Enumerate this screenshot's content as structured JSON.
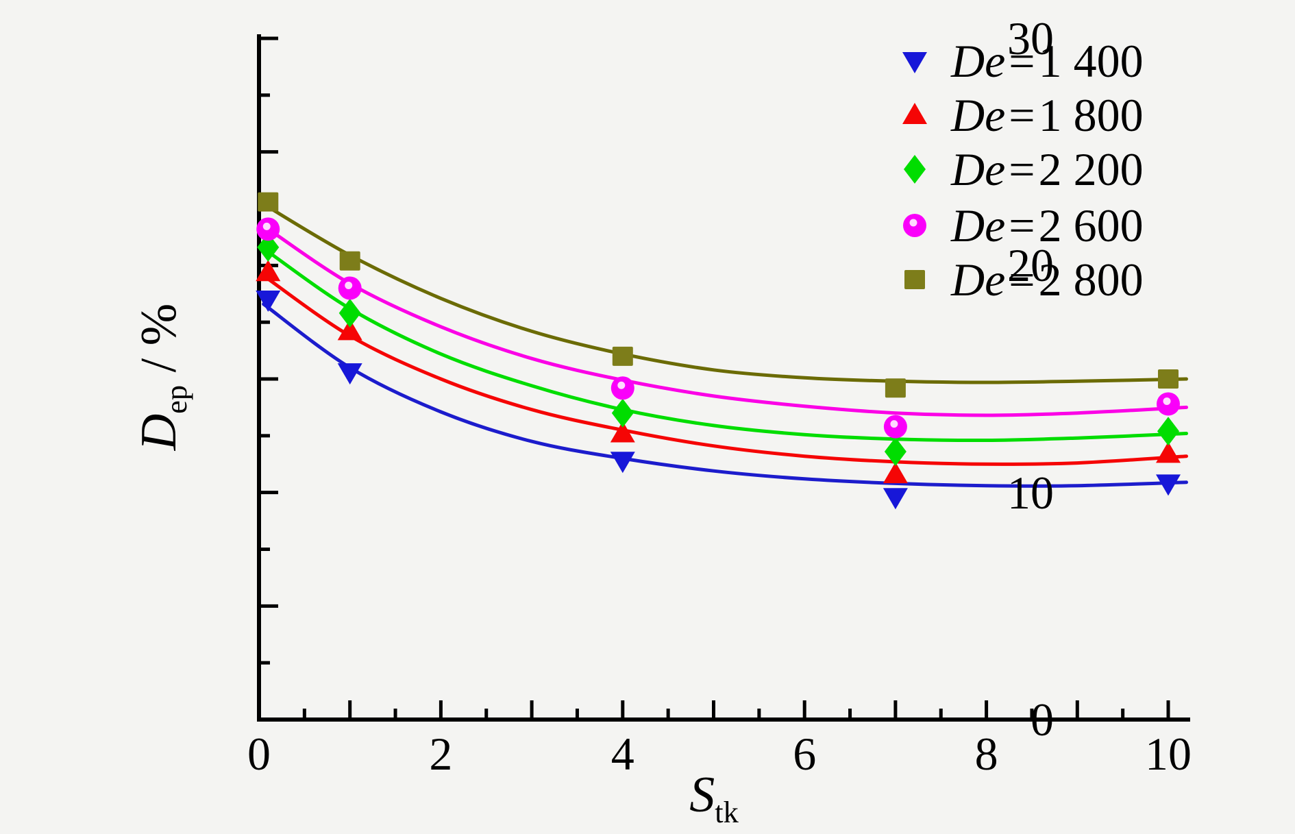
{
  "figure": {
    "background": "#f4f4f2",
    "axis_color": "#000000",
    "text_color": "#000000"
  },
  "axes": {
    "ylabel_main": "D",
    "ylabel_sub": "ep",
    "ylabel_rest": " / %",
    "xlabel_main": "S",
    "xlabel_sub": "tk",
    "y_ticks": [
      {
        "value": 30,
        "label": "30"
      },
      {
        "value": 20,
        "label": "20"
      },
      {
        "value": 10,
        "label": "10"
      },
      {
        "value": 0,
        "label": "0"
      }
    ],
    "x_ticks": [
      {
        "value": 0,
        "label": "0"
      },
      {
        "value": 2,
        "label": "2"
      },
      {
        "value": 4,
        "label": "4"
      },
      {
        "value": 6,
        "label": "6"
      },
      {
        "value": 8,
        "label": "8"
      },
      {
        "value": 10,
        "label": "10"
      }
    ]
  },
  "legend": {
    "items": [
      {
        "id": "de-1400",
        "prefix": "De",
        "eq": "=",
        "value": "1 400",
        "marker": "triangle-down",
        "color": "#1717d8"
      },
      {
        "id": "de-1800",
        "prefix": "De",
        "eq": "=",
        "value": "1 800",
        "marker": "triangle-up",
        "color": "#f50505"
      },
      {
        "id": "de-2200",
        "prefix": "De",
        "eq": "=",
        "value": "2 200",
        "marker": "diamond",
        "color": "#00dd00"
      },
      {
        "id": "de-2600",
        "prefix": "De",
        "eq": "=",
        "value": "2 600",
        "marker": "circle",
        "color": "#fa00fa"
      },
      {
        "id": "de-2800",
        "prefix": "De",
        "eq": "=",
        "value": "2 800",
        "marker": "square",
        "color": "#7d7d1a"
      }
    ]
  },
  "chart_data": {
    "type": "scatter",
    "title": "",
    "xlabel": "S_tk",
    "ylabel": "D_ep / %",
    "xlim": [
      0,
      10.2
    ],
    "ylim": [
      0,
      30
    ],
    "grid": false,
    "legend_position": "upper-right",
    "x_major_tick_step": 1,
    "x_minor_tick_step": 0.5,
    "y_major_tick_step": 5,
    "y_minor_tick_step": 2.5,
    "x": [
      0.1,
      1,
      4,
      7,
      10
    ],
    "series": [
      {
        "id": "de-1400",
        "name": "De=1 400",
        "marker": "triangle-down",
        "marker_color": "#1717d8",
        "line_color": "#1c1ccc",
        "values": [
          18.5,
          15.3,
          11.4,
          9.8,
          10.4
        ],
        "fit_curve": [
          [
            0.05,
            18.3
          ],
          [
            1,
            15.5
          ],
          [
            2,
            13.55
          ],
          [
            3,
            12.25
          ],
          [
            4,
            11.5
          ],
          [
            5,
            10.95
          ],
          [
            6,
            10.6
          ],
          [
            7,
            10.4
          ],
          [
            8,
            10.3
          ],
          [
            9,
            10.3
          ],
          [
            10.2,
            10.45
          ]
        ]
      },
      {
        "id": "de-1800",
        "name": "De=1 800",
        "marker": "triangle-up",
        "marker_color": "#f50505",
        "line_color": "#f50505",
        "values": [
          19.7,
          17.1,
          12.6,
          10.8,
          11.7
        ],
        "fit_curve": [
          [
            0.05,
            19.55
          ],
          [
            1,
            16.9
          ],
          [
            2,
            15.0
          ],
          [
            3,
            13.65
          ],
          [
            4,
            12.75
          ],
          [
            5,
            12.05
          ],
          [
            6,
            11.6
          ],
          [
            7,
            11.35
          ],
          [
            8,
            11.25
          ],
          [
            9,
            11.3
          ],
          [
            10.2,
            11.6
          ]
        ]
      },
      {
        "id": "de-2200",
        "name": "De=2 200",
        "marker": "diamond",
        "marker_color": "#00dd00",
        "line_color": "#00dd00",
        "values": [
          20.8,
          17.9,
          13.5,
          11.8,
          12.7
        ],
        "fit_curve": [
          [
            0.05,
            20.75
          ],
          [
            1,
            18.1
          ],
          [
            2,
            16.1
          ],
          [
            3,
            14.7
          ],
          [
            4,
            13.65
          ],
          [
            5,
            12.95
          ],
          [
            6,
            12.55
          ],
          [
            7,
            12.35
          ],
          [
            8,
            12.3
          ],
          [
            9,
            12.4
          ],
          [
            10.2,
            12.6
          ]
        ]
      },
      {
        "id": "de-2600",
        "name": "De=2 600",
        "marker": "circle",
        "marker_color": "#fa00fa",
        "line_color": "#fb00e6",
        "values": [
          21.6,
          19.0,
          14.6,
          12.9,
          13.9
        ],
        "fit_curve": [
          [
            0.05,
            21.75
          ],
          [
            1,
            19.2
          ],
          [
            2,
            17.3
          ],
          [
            3,
            15.9
          ],
          [
            4,
            14.95
          ],
          [
            5,
            14.25
          ],
          [
            6,
            13.8
          ],
          [
            7,
            13.5
          ],
          [
            8,
            13.4
          ],
          [
            9,
            13.5
          ],
          [
            10.2,
            13.75
          ]
        ]
      },
      {
        "id": "de-2800",
        "name": "De=2 800",
        "marker": "square",
        "marker_color": "#7d7d1a",
        "line_color": "#6b6b05",
        "values": [
          22.8,
          20.2,
          16.0,
          14.6,
          15.0
        ],
        "fit_curve": [
          [
            0.05,
            22.7
          ],
          [
            1,
            20.45
          ],
          [
            2,
            18.55
          ],
          [
            3,
            17.1
          ],
          [
            4,
            16.1
          ],
          [
            5,
            15.4
          ],
          [
            6,
            15.05
          ],
          [
            7,
            14.9
          ],
          [
            8,
            14.85
          ],
          [
            9,
            14.9
          ],
          [
            10.2,
            15.0
          ]
        ]
      }
    ]
  }
}
